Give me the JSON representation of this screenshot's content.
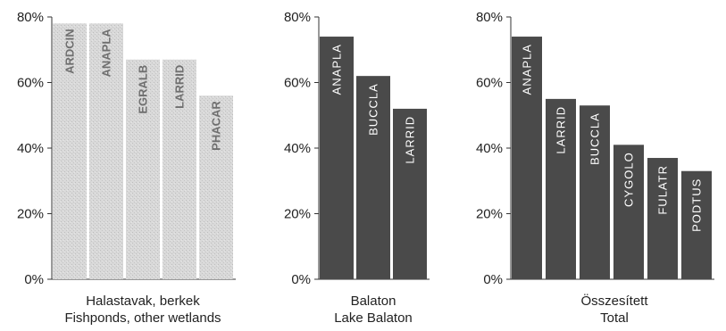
{
  "chart_data": [
    {
      "type": "bar",
      "categories": [
        "ARDCIN",
        "ANAPLA",
        "EGRALB",
        "LARRID",
        "PHACAR"
      ],
      "values": [
        78,
        78,
        67,
        67,
        56
      ],
      "ylim": [
        0,
        80
      ],
      "yticks": [
        "0%",
        "20%",
        "40%",
        "60%",
        "80%"
      ],
      "caption_line1": "Halastavak, berkek",
      "caption_line2": "Fishponds, other wetlands",
      "bar_color": "#d6d6d6",
      "label_color": "#6f6f6f",
      "grid": false
    },
    {
      "type": "bar",
      "categories": [
        "ANAPLA",
        "BUCCLA",
        "LARRID"
      ],
      "values": [
        74,
        62,
        52
      ],
      "ylim": [
        0,
        80
      ],
      "yticks": [
        "0%",
        "20%",
        "40%",
        "60%",
        "80%"
      ],
      "caption_line1": "Balaton",
      "caption_line2": "Lake Balaton",
      "bar_color": "#4a4a4a",
      "label_color": "#ffffff",
      "grid": false
    },
    {
      "type": "bar",
      "categories": [
        "ANAPLA",
        "LARRID",
        "BUCCLA",
        "CYGOLO",
        "FULATR",
        "PODTUS"
      ],
      "values": [
        74,
        55,
        53,
        41,
        37,
        33
      ],
      "ylim": [
        0,
        80
      ],
      "yticks": [
        "0%",
        "20%",
        "40%",
        "60%",
        "80%"
      ],
      "caption_line1": "Összesített",
      "caption_line2": "Total",
      "bar_color": "#4a4a4a",
      "label_color": "#ffffff",
      "grid": false
    }
  ]
}
